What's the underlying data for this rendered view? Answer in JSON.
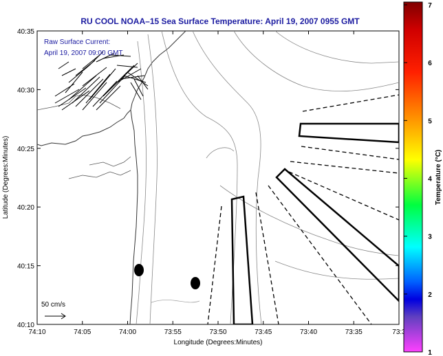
{
  "title": "RU COOL  NOAA–15  Sea Surface Temperature:  April 19, 2007 0955 GMT",
  "annotation": {
    "line1": "Raw Surface Current:",
    "line2": "April 19, 2007 09:00 GMT"
  },
  "axes": {
    "xlabel": "Longitude (Degrees:Minutes)",
    "ylabel": "Latitude (Degrees:Minutes)",
    "xticks": [
      "74:10",
      "74:05",
      "74:00",
      "73:55",
      "73:50",
      "73:45",
      "73:40",
      "73:35",
      "73:3"
    ],
    "yticks": [
      "40:35",
      "40:30",
      "40:25",
      "40:20",
      "40:15",
      "40:10"
    ]
  },
  "scale": {
    "label": "50 cm/s"
  },
  "colorbar": {
    "label": "Temperature (°C)",
    "ticks": [
      "7",
      "6",
      "5",
      "4",
      "3",
      "2",
      "1"
    ],
    "colors": [
      "#800000",
      "#ff0000",
      "#ff8000",
      "#ffff00",
      "#00ff00",
      "#00ffff",
      "#0000ff",
      "#4040c0",
      "#ff40ff"
    ]
  }
}
